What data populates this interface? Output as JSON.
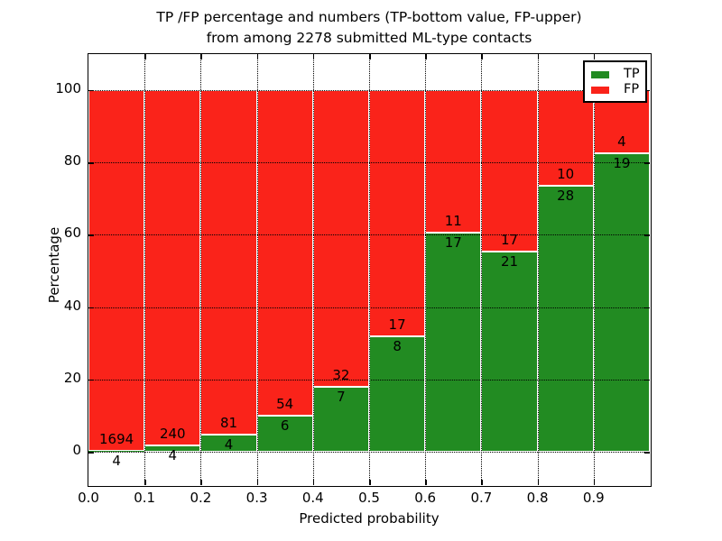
{
  "title": {
    "line1": "TP /FP percentage and numbers (TP-bottom value, FP-upper)",
    "line2": "from among 2278 submitted ML-type contacts"
  },
  "axes": {
    "xlabel": "Predicted probability",
    "ylabel": "Percentage",
    "x_tick_labels": [
      "0.0",
      "0.1",
      "0.2",
      "0.3",
      "0.4",
      "0.5",
      "0.6",
      "0.7",
      "0.8",
      "0.9"
    ],
    "y_tick_labels": [
      "0",
      "20",
      "40",
      "60",
      "80",
      "100"
    ],
    "y_tick_values": [
      0,
      20,
      40,
      60,
      80,
      100
    ],
    "xlim": [
      0.0,
      1.0
    ],
    "ylim": [
      -9.2,
      110
    ]
  },
  "legend": {
    "position": "upper right",
    "items": [
      {
        "label": "TP",
        "color": "#228b22"
      },
      {
        "label": "FP",
        "color": "#fa231a"
      }
    ]
  },
  "chart_data": {
    "type": "bar",
    "stacked": true,
    "normalized": "each bin stacks to 100 percent; counts shown as labels",
    "title": "TP /FP percentage and numbers (TP-bottom value, FP-upper) from among 2278 submitted ML-type contacts",
    "xlabel": "Predicted probability",
    "ylabel": "Percentage",
    "total_contacts": 2278,
    "bin_edges": [
      0.0,
      0.1,
      0.2,
      0.3,
      0.4,
      0.5,
      0.6,
      0.7,
      0.8,
      0.9,
      1.0
    ],
    "series": [
      {
        "name": "TP",
        "color": "#228b22",
        "counts": [
          4,
          4,
          4,
          6,
          7,
          8,
          17,
          21,
          28,
          19
        ]
      },
      {
        "name": "FP",
        "color": "#fa231a",
        "counts": [
          1694,
          240,
          81,
          54,
          32,
          17,
          11,
          17,
          10,
          4
        ]
      }
    ],
    "tp_percent_per_bin": [
      0.24,
      1.64,
      4.71,
      10.0,
      17.95,
      32.0,
      60.71,
      55.26,
      73.68,
      82.61
    ],
    "grid": "dotted black, drawn over bars",
    "legend_position": "upper right"
  },
  "colors": {
    "tp": "#228b22",
    "fp": "#fa231a",
    "background": "#ffffff",
    "text": "#000000"
  }
}
